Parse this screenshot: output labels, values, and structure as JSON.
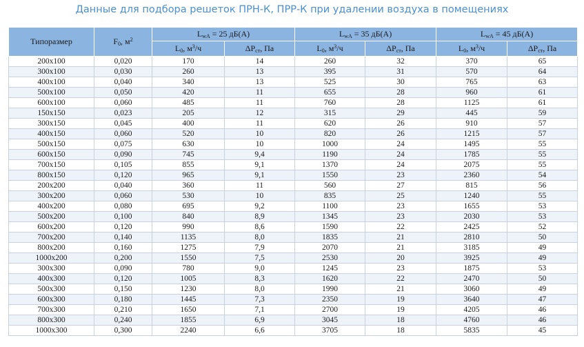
{
  "title": "Данные для подбора решеток ПРН-К, ПРР-К при удалении воздуха в помещениях",
  "header": {
    "size": "Типоразмер",
    "f": {
      "main": "F",
      "sub": "0",
      "rest": ", м",
      "sup": "2"
    },
    "groups": [
      {
        "main": "L",
        "sub": "wA",
        "rest": " = 25 дБ(А)"
      },
      {
        "main": "L",
        "sub": "wA",
        "rest": " = 35 дБ(А)"
      },
      {
        "main": "L",
        "sub": "wA",
        "rest": " = 45 дБ(А)"
      }
    ],
    "lcol": {
      "main": "L",
      "sub": "0",
      "rest": ", м",
      "sup": "3",
      "tail": "/ч"
    },
    "pcol": {
      "main": "ΔP",
      "sub": "ст",
      "rest": ", Па"
    }
  },
  "rows": [
    [
      "200х100",
      "0,020",
      "170",
      "14",
      "260",
      "32",
      "370",
      "65"
    ],
    [
      "300х100",
      "0,030",
      "260",
      "13",
      "395",
      "31",
      "570",
      "64"
    ],
    [
      "400х100",
      "0,040",
      "340",
      "13",
      "525",
      "30",
      "765",
      "63"
    ],
    [
      "500х100",
      "0,050",
      "420",
      "11",
      "655",
      "28",
      "960",
      "61"
    ],
    [
      "600х100",
      "0,060",
      "485",
      "11",
      "760",
      "28",
      "1125",
      "61"
    ],
    [
      "150х150",
      "0,023",
      "205",
      "12",
      "315",
      "29",
      "445",
      "59"
    ],
    [
      "300х150",
      "0,045",
      "400",
      "11",
      "620",
      "26",
      "910",
      "57"
    ],
    [
      "400х150",
      "0,060",
      "520",
      "10",
      "820",
      "26",
      "1215",
      "57"
    ],
    [
      "500х150",
      "0,075",
      "630",
      "10",
      "1000",
      "24",
      "1495",
      "55"
    ],
    [
      "600х150",
      "0,090",
      "745",
      "9,4",
      "1190",
      "24",
      "1785",
      "55"
    ],
    [
      "700х150",
      "0,105",
      "855",
      "9,1",
      "1370",
      "24",
      "2075",
      "55"
    ],
    [
      "800х150",
      "0,120",
      "965",
      "9,1",
      "1550",
      "23",
      "2360",
      "54"
    ],
    [
      "200х200",
      "0,040",
      "360",
      "11",
      "560",
      "27",
      "815",
      "56"
    ],
    [
      "300х200",
      "0,060",
      "530",
      "10",
      "835",
      "25",
      "1240",
      "55"
    ],
    [
      "400х200",
      "0,080",
      "695",
      "9,2",
      "1100",
      "23",
      "1655",
      "53"
    ],
    [
      "500х200",
      "0,100",
      "840",
      "8,9",
      "1345",
      "23",
      "2030",
      "53"
    ],
    [
      "600х200",
      "0,120",
      "990",
      "8,6",
      "1590",
      "22",
      "2425",
      "52"
    ],
    [
      "700х200",
      "0,140",
      "1135",
      "8,0",
      "1835",
      "21",
      "2810",
      "50"
    ],
    [
      "800х200",
      "0,160",
      "1275",
      "7,9",
      "2070",
      "21",
      "3185",
      "49"
    ],
    [
      "1000х200",
      "0,200",
      "1550",
      "7,5",
      "2530",
      "20",
      "3925",
      "49"
    ],
    [
      "300х300",
      "0,090",
      "780",
      "9,0",
      "1245",
      "23",
      "1875",
      "53"
    ],
    [
      "400х300",
      "0,120",
      "1005",
      "8,3",
      "1620",
      "22",
      "2470",
      "50"
    ],
    [
      "500х300",
      "0,150",
      "1230",
      "8,0",
      "1990",
      "21",
      "3060",
      "49"
    ],
    [
      "600х300",
      "0,180",
      "1445",
      "7,3",
      "2350",
      "19",
      "3640",
      "47"
    ],
    [
      "700х300",
      "0,210",
      "1650",
      "7,1",
      "2700",
      "19",
      "4205",
      "46"
    ],
    [
      "800х300",
      "0,240",
      "1855",
      "6,9",
      "3045",
      "18",
      "4760",
      "46"
    ],
    [
      "1000х300",
      "0,300",
      "2240",
      "6,6",
      "3705",
      "18",
      "5835",
      "45"
    ]
  ]
}
